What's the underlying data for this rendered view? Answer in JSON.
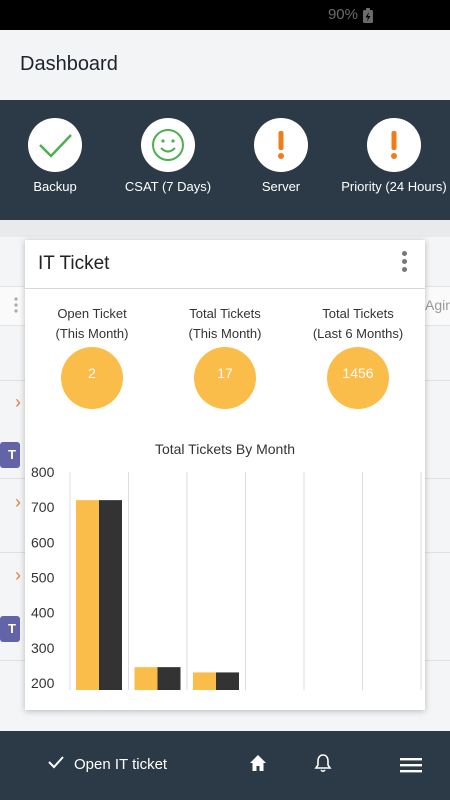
{
  "status_bar": {
    "battery": "90%"
  },
  "header": {
    "title": "Dashboard"
  },
  "status_strip": {
    "items": [
      {
        "label": "Backup",
        "icon": "check-icon",
        "color": "#4caf50"
      },
      {
        "label": "CSAT (7 Days)",
        "icon": "smiley-icon",
        "color": "#4caf50"
      },
      {
        "label": "Server",
        "icon": "exclamation-icon",
        "color": "#f07d1a"
      },
      {
        "label": "Priority (24 Hours)",
        "icon": "exclamation-icon",
        "color": "#f07d1a"
      }
    ]
  },
  "background": {
    "column_header": "Agin"
  },
  "card": {
    "title": "IT Ticket",
    "kpis": [
      {
        "label_line1": "Open Ticket",
        "label_line2": "(This Month)",
        "value": "2"
      },
      {
        "label_line1": "Total Tickets",
        "label_line2": "(This Month)",
        "value": "17"
      },
      {
        "label_line1": "Total Tickets",
        "label_line2": "(Last 6 Months)",
        "value": "1456"
      }
    ]
  },
  "chart_data": {
    "type": "bar",
    "title": "Total Tickets By Month",
    "categories": [
      "",
      "",
      "",
      "",
      "",
      ""
    ],
    "series": [
      {
        "values": [
          720,
          245,
          230,
          null,
          null,
          null
        ],
        "color": "#fbbd49"
      },
      {
        "values": [
          720,
          245,
          230,
          null,
          null,
          null
        ],
        "color": "#333333"
      }
    ],
    "ylim": [
      180,
      800
    ],
    "yticks": [
      "800",
      "700",
      "600",
      "500",
      "400",
      "300",
      "200"
    ],
    "grid": "vertical"
  },
  "bottom_bar": {
    "open_ticket_label": "Open IT ticket",
    "icons": [
      "home-icon",
      "bell-icon",
      "menu-icon"
    ]
  },
  "colors": {
    "accent": "#fbbd49",
    "dark": "#2b3a46"
  }
}
